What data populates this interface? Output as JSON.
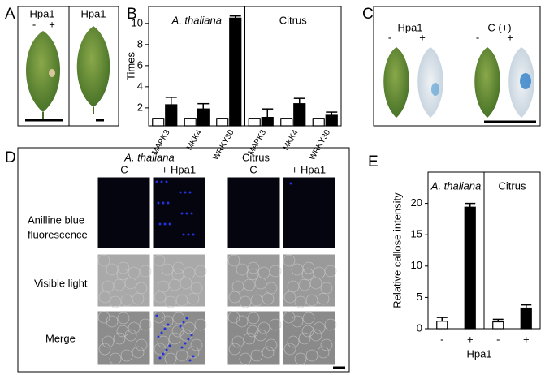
{
  "panel_labels": [
    "A",
    "B",
    "C",
    "D",
    "E"
  ],
  "panel_a": {
    "titles": [
      "Hpa1",
      "Hpa1"
    ],
    "signs": [
      "-",
      "+"
    ]
  },
  "panel_c": {
    "titles": [
      "Hpa1",
      "C (+)"
    ],
    "signs": [
      [
        "-",
        "+"
      ],
      [
        "-",
        "+"
      ]
    ]
  },
  "panel_d": {
    "species": [
      "A. thaliana",
      "Citrus"
    ],
    "columns": [
      "C",
      "+ Hpa1",
      "C",
      "+ Hpa1"
    ],
    "row_labels": [
      [
        "Anilline blue",
        "fluorescence"
      ],
      [
        "Visible light"
      ],
      [
        "Merge"
      ]
    ]
  },
  "chart_data": [
    {
      "type": "bar",
      "y_label": "Times",
      "groups": [
        "A. thaliana",
        "Citrus"
      ],
      "group_italic": [
        true,
        false
      ],
      "categories": [
        "MAPK3",
        "MKK4",
        "WRKY30",
        "MAPK3",
        "MKK4",
        "WRKY30"
      ],
      "series": [
        {
          "color": "#ffffff",
          "values": [
            1,
            1,
            1,
            1,
            1,
            1
          ],
          "errors": [
            0,
            0,
            0,
            0,
            0,
            0
          ]
        },
        {
          "color": "#000000",
          "values": [
            2.3,
            1.9,
            10.5,
            1.1,
            2.4,
            1.3
          ],
          "errors": [
            0.7,
            0.5,
            0.2,
            0.8,
            0.5,
            0.3
          ]
        }
      ],
      "ylim": [
        0.3,
        11.6
      ],
      "yticks": [
        2,
        4,
        6,
        8,
        10
      ]
    },
    {
      "type": "bar",
      "y_label": "Relative callose intensity",
      "x_label": "Hpa1",
      "groups": [
        "A. thaliana",
        "Citrus"
      ],
      "group_italic": [
        true,
        false
      ],
      "categories": [
        "-",
        "+",
        "-",
        "+"
      ],
      "values": [
        1.2,
        19.4,
        1.1,
        3.3
      ],
      "errors": [
        0.6,
        0.6,
        0.4,
        0.5
      ],
      "colors": [
        "#ffffff",
        "#000000",
        "#ffffff",
        "#000000"
      ],
      "ylim": [
        0,
        25
      ],
      "yticks": [
        0,
        5,
        10,
        15,
        20
      ]
    }
  ]
}
